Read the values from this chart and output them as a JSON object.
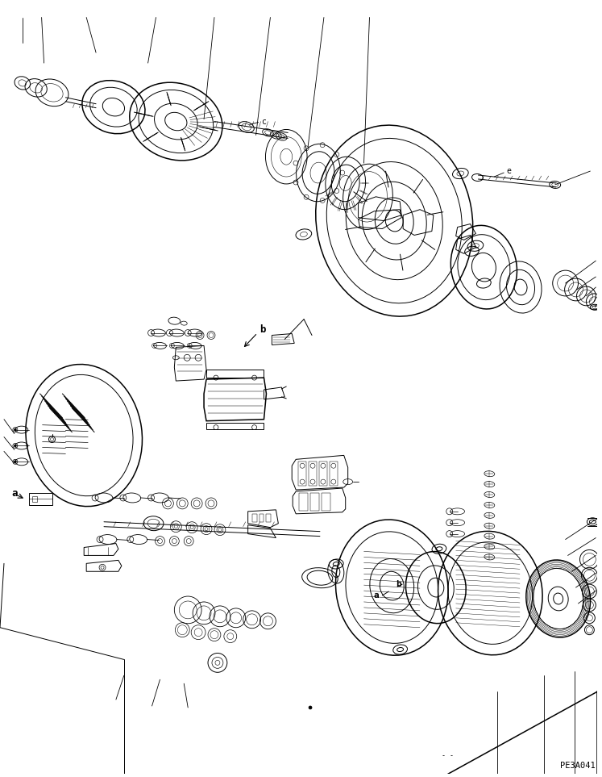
{
  "bg_color": "#ffffff",
  "line_color": "#000000",
  "part_number": "PE3A041",
  "label_a": "a",
  "label_b": "b",
  "label_c": "c",
  "label_e": "e",
  "fig_width": 7.47,
  "fig_height": 9.63,
  "dpi": 100
}
